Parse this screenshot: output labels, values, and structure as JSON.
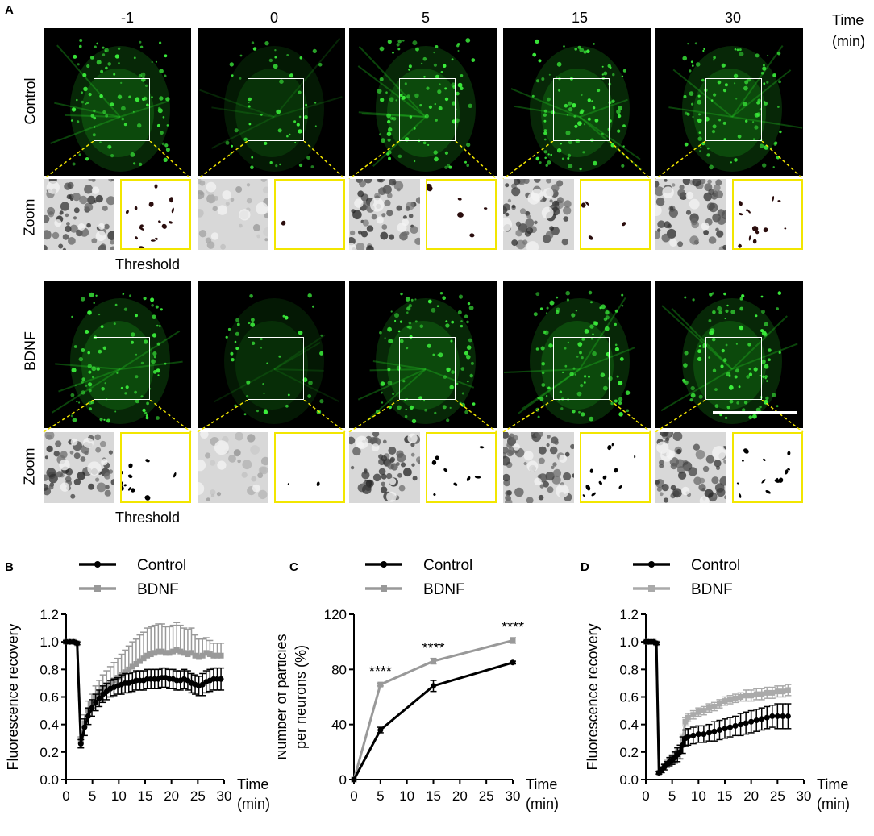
{
  "panel_a": {
    "letter": "A",
    "time_points": [
      "-1",
      "0",
      "5",
      "15",
      "30"
    ],
    "time_axis_label": [
      "Time",
      "(min)"
    ],
    "rows": [
      {
        "label": "Control",
        "zoom_label": "Zoom",
        "threshold_label": "Threshold",
        "brightness": [
          1.0,
          0.55,
          1.0,
          1.0,
          1.0
        ],
        "threshold_density": [
          1.0,
          0.1,
          0.35,
          0.35,
          0.7
        ]
      },
      {
        "label": "BDNF",
        "zoom_label": "Zoom",
        "threshold_label": "Threshold",
        "brightness": [
          1.0,
          0.45,
          1.0,
          1.0,
          1.0
        ],
        "threshold_density": [
          0.9,
          0.05,
          0.55,
          0.9,
          0.9
        ]
      }
    ],
    "colors": {
      "signal": "#22c322",
      "roi": "#ffffff",
      "zoom_frame": "#f2e600",
      "guide": "#f2e600"
    }
  },
  "chart_data": [
    {
      "panel": "B",
      "type": "line",
      "xlabel": "Time",
      "xunit": "(min)",
      "ylabel": "Fluorescence recovery",
      "xlim": [
        0,
        30
      ],
      "ylim": [
        0,
        1.2
      ],
      "xticks": [
        "0",
        "5",
        "10",
        "15",
        "20",
        "25",
        "30"
      ],
      "yticks": [
        "0.0",
        "0.2",
        "0.4",
        "0.6",
        "0.8",
        "1.0",
        "1.2"
      ],
      "legend": [
        "Control",
        "BDNF"
      ],
      "series": [
        {
          "name": "Control",
          "color": "#000000",
          "x": [
            0,
            0.7,
            1.4,
            2.1,
            2.8,
            3.5,
            4.2,
            4.9,
            5.6,
            6.3,
            7,
            7.7,
            8.4,
            9.1,
            9.8,
            10.5,
            11.2,
            11.9,
            12.6,
            13.3,
            14,
            14.7,
            15.4,
            16.1,
            16.8,
            17.5,
            18.2,
            18.9,
            19.6,
            20.3,
            21,
            21.7,
            22.4,
            23.1,
            23.8,
            24.5,
            25.2,
            25.9,
            26.6,
            27.3,
            28,
            28.7,
            29.4
          ],
          "y": [
            1.0,
            1.0,
            1.0,
            0.99,
            0.26,
            0.38,
            0.46,
            0.52,
            0.56,
            0.59,
            0.62,
            0.64,
            0.66,
            0.67,
            0.68,
            0.69,
            0.7,
            0.7,
            0.71,
            0.72,
            0.72,
            0.72,
            0.73,
            0.73,
            0.73,
            0.73,
            0.74,
            0.74,
            0.73,
            0.73,
            0.72,
            0.72,
            0.73,
            0.72,
            0.7,
            0.69,
            0.68,
            0.69,
            0.71,
            0.72,
            0.73,
            0.73,
            0.73
          ],
          "err": [
            0.01,
            0.01,
            0.01,
            0.01,
            0.03,
            0.06,
            0.06,
            0.06,
            0.06,
            0.06,
            0.06,
            0.06,
            0.06,
            0.06,
            0.06,
            0.07,
            0.07,
            0.07,
            0.07,
            0.07,
            0.07,
            0.07,
            0.07,
            0.07,
            0.07,
            0.07,
            0.07,
            0.07,
            0.07,
            0.07,
            0.07,
            0.07,
            0.07,
            0.07,
            0.07,
            0.07,
            0.07,
            0.08,
            0.08,
            0.08,
            0.08,
            0.08,
            0.08
          ]
        },
        {
          "name": "BDNF",
          "color": "#999999",
          "x": [
            0,
            0.7,
            1.4,
            2.1,
            2.8,
            3.5,
            4.2,
            4.9,
            5.6,
            6.3,
            7,
            7.7,
            8.4,
            9.1,
            9.8,
            10.5,
            11.2,
            11.9,
            12.6,
            13.3,
            14,
            14.7,
            15.4,
            16.1,
            16.8,
            17.5,
            18.2,
            18.9,
            19.6,
            20.3,
            21,
            21.7,
            22.4,
            23.1,
            23.8,
            24.5,
            25.2,
            25.9,
            26.6,
            27.3,
            28,
            28.7,
            29.4
          ],
          "y": [
            1.0,
            1.0,
            1.0,
            0.99,
            0.28,
            0.41,
            0.5,
            0.55,
            0.6,
            0.63,
            0.66,
            0.68,
            0.7,
            0.72,
            0.74,
            0.76,
            0.78,
            0.8,
            0.82,
            0.84,
            0.86,
            0.88,
            0.9,
            0.91,
            0.92,
            0.93,
            0.93,
            0.92,
            0.92,
            0.93,
            0.94,
            0.93,
            0.92,
            0.91,
            0.92,
            0.9,
            0.89,
            0.9,
            0.92,
            0.91,
            0.9,
            0.9,
            0.9
          ],
          "err": [
            0.01,
            0.01,
            0.01,
            0.01,
            0.03,
            0.06,
            0.07,
            0.07,
            0.08,
            0.09,
            0.1,
            0.11,
            0.12,
            0.13,
            0.14,
            0.15,
            0.16,
            0.17,
            0.18,
            0.18,
            0.19,
            0.19,
            0.2,
            0.2,
            0.2,
            0.2,
            0.2,
            0.19,
            0.19,
            0.19,
            0.2,
            0.19,
            0.18,
            0.18,
            0.18,
            0.15,
            0.13,
            0.12,
            0.11,
            0.1,
            0.09,
            0.09,
            0.09
          ]
        }
      ]
    },
    {
      "panel": "C",
      "type": "line",
      "xlabel": "Time",
      "xunit": "(min)",
      "ylabel": [
        "Number of particles",
        "per neurons (%)"
      ],
      "xlim": [
        0,
        30
      ],
      "ylim": [
        0,
        120
      ],
      "xticks": [
        "0",
        "5",
        "10",
        "15",
        "20",
        "25",
        "30"
      ],
      "yticks": [
        "0",
        "40",
        "80",
        "120"
      ],
      "legend": [
        "Control",
        "BDNF"
      ],
      "annotations": [
        {
          "x": 5,
          "y": 75,
          "text": "****"
        },
        {
          "x": 15,
          "y": 92,
          "text": "****"
        },
        {
          "x": 30,
          "y": 107,
          "text": "****"
        }
      ],
      "series": [
        {
          "name": "Control",
          "color": "#000000",
          "x": [
            0,
            5,
            15,
            30
          ],
          "y": [
            0,
            36,
            68,
            85
          ],
          "err": [
            0,
            2,
            4,
            1
          ]
        },
        {
          "name": "BDNF",
          "color": "#999999",
          "x": [
            0,
            5,
            15,
            30
          ],
          "y": [
            0,
            69,
            86,
            101
          ],
          "err": [
            0,
            1,
            2,
            2
          ]
        }
      ]
    },
    {
      "panel": "D",
      "type": "line",
      "xlabel": "Time",
      "xunit": "(min)",
      "ylabel": "Fluorescence recovery",
      "xlim": [
        0,
        30
      ],
      "ylim": [
        0,
        1.2
      ],
      "xticks": [
        "0",
        "5",
        "10",
        "15",
        "20",
        "25",
        "30"
      ],
      "yticks": [
        "0.0",
        "0.2",
        "0.4",
        "0.6",
        "0.8",
        "1.0",
        "1.2"
      ],
      "legend": [
        "Control",
        "BDNF"
      ],
      "series": [
        {
          "name": "Control",
          "color": "#000000",
          "x": [
            0,
            0.5,
            1,
            1.5,
            2,
            2.5,
            3,
            3.5,
            4,
            4.5,
            5,
            5.5,
            6,
            6.5,
            7,
            7.5,
            8,
            9,
            10,
            11,
            12,
            13,
            14,
            15,
            16,
            17,
            18,
            19,
            20,
            21,
            22,
            23,
            24,
            25,
            26,
            27
          ],
          "y": [
            1.0,
            1.0,
            1.0,
            1.0,
            0.99,
            0.05,
            0.07,
            0.09,
            0.11,
            0.13,
            0.14,
            0.16,
            0.18,
            0.2,
            0.25,
            0.3,
            0.31,
            0.32,
            0.33,
            0.33,
            0.34,
            0.35,
            0.36,
            0.37,
            0.38,
            0.39,
            0.4,
            0.41,
            0.42,
            0.43,
            0.44,
            0.45,
            0.46,
            0.46,
            0.46,
            0.46
          ],
          "err": [
            0,
            0,
            0,
            0,
            0.01,
            0.01,
            0.02,
            0.02,
            0.02,
            0.03,
            0.03,
            0.04,
            0.05,
            0.05,
            0.06,
            0.06,
            0.06,
            0.06,
            0.06,
            0.06,
            0.06,
            0.07,
            0.07,
            0.07,
            0.07,
            0.07,
            0.08,
            0.08,
            0.08,
            0.08,
            0.08,
            0.08,
            0.08,
            0.09,
            0.09,
            0.09
          ]
        },
        {
          "name": "BDNF",
          "color": "#aaaaaa",
          "x": [
            0,
            0.5,
            1,
            1.5,
            2,
            2.5,
            3,
            3.5,
            4,
            4.5,
            5,
            5.5,
            6,
            6.5,
            7,
            7.5,
            8,
            9,
            10,
            11,
            12,
            13,
            14,
            15,
            16,
            17,
            18,
            19,
            20,
            21,
            22,
            23,
            24,
            25,
            26,
            27
          ],
          "y": [
            1.0,
            1.0,
            1.0,
            1.0,
            0.99,
            0.05,
            0.08,
            0.1,
            0.12,
            0.14,
            0.16,
            0.18,
            0.2,
            0.22,
            0.3,
            0.42,
            0.45,
            0.47,
            0.49,
            0.5,
            0.52,
            0.53,
            0.55,
            0.57,
            0.58,
            0.59,
            0.6,
            0.61,
            0.61,
            0.62,
            0.62,
            0.63,
            0.63,
            0.64,
            0.64,
            0.65
          ],
          "err": [
            0,
            0,
            0,
            0,
            0.01,
            0.01,
            0.01,
            0.01,
            0.02,
            0.02,
            0.02,
            0.02,
            0.03,
            0.03,
            0.03,
            0.03,
            0.03,
            0.03,
            0.03,
            0.03,
            0.03,
            0.03,
            0.03,
            0.03,
            0.03,
            0.03,
            0.03,
            0.04,
            0.04,
            0.04,
            0.04,
            0.04,
            0.04,
            0.04,
            0.04,
            0.04
          ]
        }
      ]
    }
  ]
}
